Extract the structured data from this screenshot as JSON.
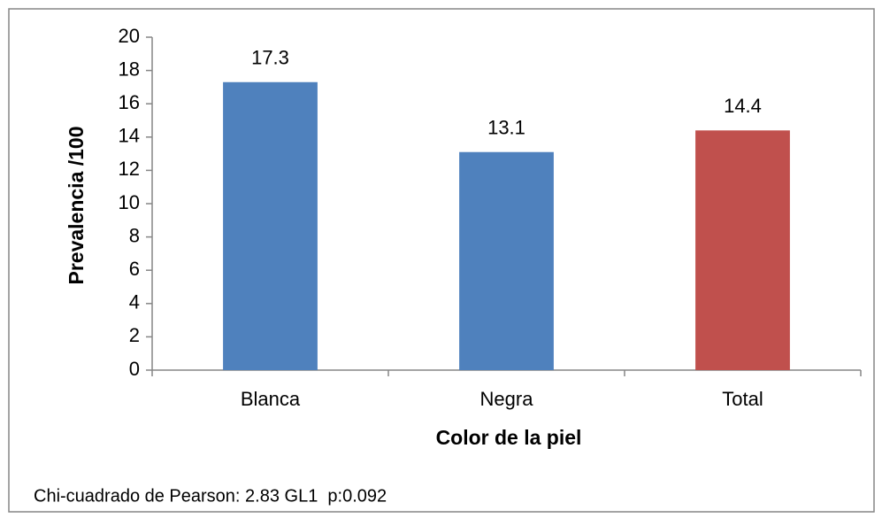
{
  "chart_data": {
    "type": "bar",
    "categories": [
      "Blanca",
      "Negra",
      "Total"
    ],
    "values": [
      17.3,
      13.1,
      14.4
    ],
    "colors": [
      "#4f81bd",
      "#4f81bd",
      "#c0504d"
    ],
    "ylim": [
      0,
      20
    ],
    "yticks": [
      0,
      2,
      4,
      6,
      8,
      10,
      12,
      14,
      16,
      18,
      20
    ],
    "y_label": "Prevalencia /100",
    "x_label": "Color de la piel",
    "annotation": "Chi-cuadrado de Pearson: 2.83 GL1  p:0.092",
    "grid": false
  }
}
